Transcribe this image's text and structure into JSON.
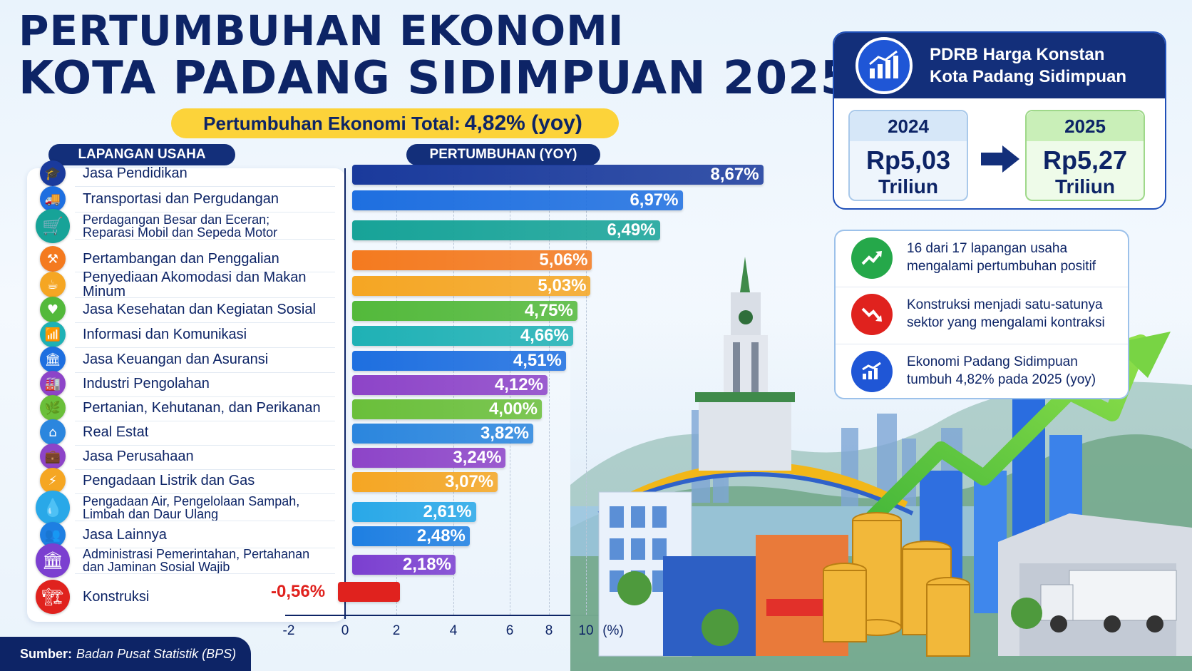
{
  "title": {
    "line1": "PERTUMBUHAN EKONOMI",
    "line2": "KOTA PADANG SIDIMPUAN 2025"
  },
  "total": {
    "label": "Pertumbuhan Ekonomi Total:",
    "value": "4,82% (yoy)"
  },
  "headers": {
    "sector": "LAPANGAN USAHA",
    "growth": "PERTUMBUHAN (YOY)"
  },
  "chart_data": {
    "type": "bar",
    "orientation": "horizontal",
    "categories": [
      "Jasa Pendidikan",
      "Transportasi dan Pergudangan",
      "Perdagangan Besar dan Eceran; Reparasi Mobil dan Sepeda Motor",
      "Pertambangan dan Penggalian",
      "Penyediaan Akomodasi dan Makan Minum",
      "Jasa Kesehatan dan Kegiatan Sosial",
      "Informasi dan Komunikasi",
      "Jasa Keuangan dan Asuransi",
      "Industri Pengolahan",
      "Pertanian, Kehutanan, dan Perikanan",
      "Real Estat",
      "Jasa Perusahaan",
      "Pengadaan Listrik dan Gas",
      "Pengadaan Air, Pengelolaan Sampah, Limbah dan Daur Ulang",
      "Jasa Lainnya",
      "Administrasi Pemerintahan, Pertahanan dan Jaminan Sosial Wajib",
      "Konstruksi"
    ],
    "label_lines": [
      [
        "Jasa Pendidikan"
      ],
      [
        "Transportasi dan Pergudangan"
      ],
      [
        "Perdagangan Besar dan Eceran;",
        "Reparasi Mobil dan Sepeda Motor"
      ],
      [
        "Pertambangan dan Penggalian"
      ],
      [
        "Penyediaan Akomodasi dan Makan Minum"
      ],
      [
        "Jasa Kesehatan dan Kegiatan Sosial"
      ],
      [
        "Informasi dan Komunikasi"
      ],
      [
        "Jasa Keuangan dan Asuransi"
      ],
      [
        "Industri Pengolahan"
      ],
      [
        "Pertanian, Kehutanan, dan Perikanan"
      ],
      [
        "Real Estat"
      ],
      [
        "Jasa Perusahaan"
      ],
      [
        "Pengadaan Listrik dan Gas"
      ],
      [
        "Pengadaan Air, Pengelolaan Sampah,",
        "Limbah dan Daur Ulang"
      ],
      [
        "Jasa Lainnya"
      ],
      [
        "Administrasi Pemerintahan, Pertahanan",
        "dan Jaminan Sosial Wajib"
      ],
      [
        "Konstruksi"
      ]
    ],
    "values": [
      8.67,
      6.97,
      6.49,
      5.06,
      5.03,
      4.75,
      4.66,
      4.51,
      4.12,
      4.0,
      3.82,
      3.24,
      3.07,
      2.61,
      2.48,
      2.18,
      -0.56
    ],
    "value_labels": [
      "8,67%",
      "6,97%",
      "6,49%",
      "5,06%",
      "5,03%",
      "4,75%",
      "4,66%",
      "4,51%",
      "4,12%",
      "4,00%",
      "3,82%",
      "3,24%",
      "3,07%",
      "2,61%",
      "2,48%",
      "2,18%",
      "-0,56%"
    ],
    "colors": [
      "#1a3a9c",
      "#1e6fe0",
      "#17a398",
      "#f47a1f",
      "#f5a623",
      "#53b93b",
      "#1fb1b5",
      "#1e6fe0",
      "#8d44c8",
      "#6abf3a",
      "#2b86de",
      "#8d44c8",
      "#f5a623",
      "#29a8e8",
      "#1e7fe2",
      "#7b3fd0",
      "#e0221e"
    ],
    "icons": [
      "graduation-cap-icon",
      "truck-icon",
      "shopping-cart-icon",
      "pickaxe-icon",
      "food-cloche-icon",
      "health-heart-icon",
      "wifi-icon",
      "bank-icon",
      "factory-icon",
      "leaf-icon",
      "house-icon",
      "briefcase-icon",
      "lightning-icon",
      "water-drop-icon",
      "people-icon",
      "government-building-icon",
      "crane-icon"
    ],
    "icon_glyphs": [
      "🎓",
      "🚚",
      "🛒",
      "⚒",
      "☕",
      "♥",
      "📶",
      "🏛",
      "🏭",
      "🌿",
      "⌂",
      "💼",
      "⚡",
      "💧",
      "👥",
      "🏛",
      "🏗"
    ],
    "xlim": [
      -2,
      10
    ],
    "xticks": [
      "-2",
      "0",
      "2",
      "4",
      "6",
      "8",
      "10"
    ],
    "xunit": "(%)",
    "grid": true
  },
  "pdrb": {
    "title_line1": "PDRB Harga Konstan",
    "title_line2": "Kota Padang Sidimpuan",
    "y2024": {
      "year": "2024",
      "amount": "Rp5,03",
      "unit": "Triliun"
    },
    "y2025": {
      "year": "2025",
      "amount": "Rp5,27",
      "unit": "Triliun"
    },
    "icon": "growth-chart-icon"
  },
  "notes": [
    {
      "icon": "trend-up-icon",
      "color": "#25a84a",
      "text_line1": "16 dari 17 lapangan usaha",
      "text_line2": "mengalami pertumbuhan positif"
    },
    {
      "icon": "trend-down-icon",
      "color": "#e0221e",
      "text_line1": "Konstruksi menjadi satu-satunya",
      "text_line2": "sektor yang mengalami kontraksi"
    },
    {
      "icon": "bar-growth-icon",
      "color": "#1f56d6",
      "text_line1": "Ekonomi Padang Sidimpuan",
      "text_line2": "tumbuh 4,82% pada 2025 (yoy)"
    }
  ],
  "source": {
    "label": "Sumber:",
    "value": "Badan Pusat Statistik (BPS)"
  },
  "colors": {
    "navy": "#0d2466",
    "yellow": "#fcd33a",
    "green": "#25a84a",
    "red": "#e0221e"
  }
}
